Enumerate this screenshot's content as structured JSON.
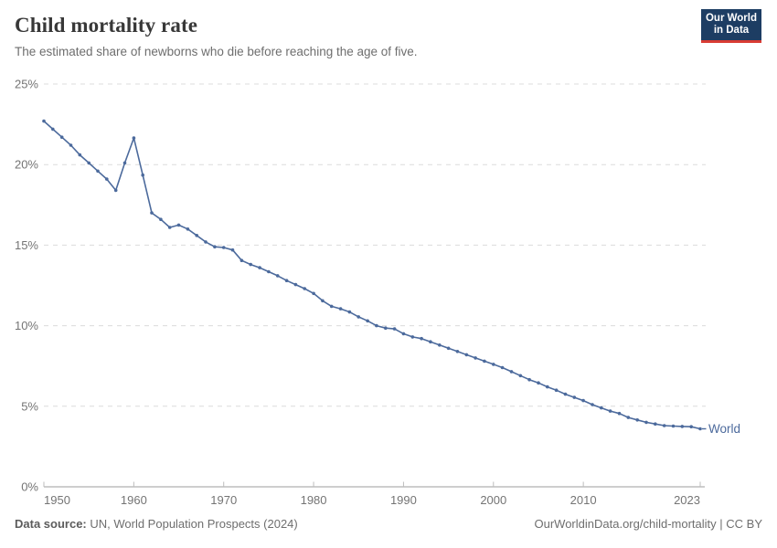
{
  "header": {
    "title": "Child mortality rate",
    "subtitle": "The estimated share of newborns who die before reaching the age of five.",
    "logo": {
      "line1": "Our World",
      "line2": "in Data",
      "navy_color": "#1d3d63",
      "red_color": "#d93c34"
    }
  },
  "chart_data": {
    "type": "line",
    "title": "Child mortality rate",
    "subtitle": "The estimated share of newborns who die before reaching the age of five.",
    "xlabel": "",
    "ylabel": "",
    "xlim": [
      1950,
      2023
    ],
    "ylim": [
      0,
      25
    ],
    "yticks": [
      0,
      5,
      10,
      15,
      20,
      25
    ],
    "ytick_format": "{}%",
    "xticks": [
      1950,
      1960,
      1970,
      1980,
      1990,
      2000,
      2010,
      2023
    ],
    "grid": "horizontal dashed",
    "legend_position": "end-of-line label",
    "marker": "dot",
    "series": [
      {
        "name": "World",
        "color": "#4C6A9C",
        "x": [
          1950,
          1951,
          1952,
          1953,
          1954,
          1955,
          1956,
          1957,
          1958,
          1959,
          1960,
          1961,
          1962,
          1963,
          1964,
          1965,
          1966,
          1967,
          1968,
          1969,
          1970,
          1971,
          1972,
          1973,
          1974,
          1975,
          1976,
          1977,
          1978,
          1979,
          1980,
          1981,
          1982,
          1983,
          1984,
          1985,
          1986,
          1987,
          1988,
          1989,
          1990,
          1991,
          1992,
          1993,
          1994,
          1995,
          1996,
          1997,
          1998,
          1999,
          2000,
          2001,
          2002,
          2003,
          2004,
          2005,
          2006,
          2007,
          2008,
          2009,
          2010,
          2011,
          2012,
          2013,
          2014,
          2015,
          2016,
          2017,
          2018,
          2019,
          2020,
          2021,
          2022,
          2023
        ],
        "values": [
          22.7,
          22.2,
          21.7,
          21.2,
          20.6,
          20.1,
          19.6,
          19.1,
          18.4,
          20.1,
          21.65,
          19.35,
          17.0,
          16.6,
          16.1,
          16.25,
          16.0,
          15.6,
          15.2,
          14.9,
          14.85,
          14.7,
          14.05,
          13.8,
          13.6,
          13.35,
          13.1,
          12.8,
          12.55,
          12.3,
          12.0,
          11.55,
          11.2,
          11.05,
          10.85,
          10.55,
          10.3,
          10.0,
          9.85,
          9.8,
          9.5,
          9.3,
          9.2,
          9.0,
          8.8,
          8.6,
          8.4,
          8.2,
          8.0,
          7.8,
          7.6,
          7.4,
          7.15,
          6.9,
          6.65,
          6.45,
          6.2,
          6.0,
          5.75,
          5.55,
          5.35,
          5.1,
          4.9,
          4.7,
          4.55,
          4.3,
          4.15,
          4.0,
          3.9,
          3.8,
          3.77,
          3.75,
          3.73,
          3.6
        ]
      }
    ]
  },
  "footer": {
    "source_label": "Data source:",
    "source_text": " UN, World Population Prospects (2024)",
    "credit": "OurWorldinData.org/child-mortality | CC BY"
  }
}
